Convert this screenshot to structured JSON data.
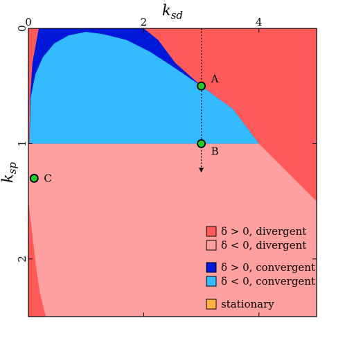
{
  "chart_data": {
    "type": "heatmap",
    "xlabel": {
      "main": "k",
      "sub": "sd"
    },
    "ylabel": {
      "main": "k",
      "sub": "sp"
    },
    "xlim": [
      0,
      5
    ],
    "ylim": [
      0,
      2.5
    ],
    "y_inverted": true,
    "x_axis_position": "top",
    "x_ticks": [
      {
        "value": 0,
        "label": "0"
      },
      {
        "value": 2,
        "label": "2"
      },
      {
        "value": 4,
        "label": "4"
      }
    ],
    "y_ticks": [
      {
        "value": 0,
        "label": "0"
      },
      {
        "value": 1,
        "label": "1"
      },
      {
        "value": 2,
        "label": "2"
      }
    ],
    "regions": [
      {
        "key": "div_pos",
        "color": "#ff5a5a",
        "legend": "δ > 0,  divergent"
      },
      {
        "key": "div_neg",
        "color": "#ffa0a0",
        "legend": "δ < 0,  divergent"
      },
      {
        "key": "conv_pos",
        "color": "#0019d9",
        "legend": "δ > 0,  convergent"
      },
      {
        "key": "conv_neg",
        "color": "#34baff",
        "legend": "δ < 0,  convergent"
      },
      {
        "key": "stationary",
        "color": "#ffb347",
        "legend": "stationary"
      }
    ],
    "region_shapes": {
      "div_pos_upper": [
        [
          2.0,
          0
        ],
        [
          5.0,
          0
        ],
        [
          5.0,
          1.5
        ],
        [
          4.5,
          1.25
        ],
        [
          4.0,
          1.0
        ],
        [
          3.55,
          0.7
        ],
        [
          3.0,
          0.5
        ],
        [
          2.55,
          0.3
        ],
        [
          2.25,
          0.1
        ]
      ],
      "div_pos_lower_left": [
        [
          0,
          1.5
        ],
        [
          0.07,
          1.8
        ],
        [
          0.14,
          2.1
        ],
        [
          0.2,
          2.3
        ],
        [
          0.3,
          2.5
        ],
        [
          0,
          2.5
        ]
      ],
      "div_neg_lower": [
        [
          0,
          1.0
        ],
        [
          4.0,
          1.0
        ],
        [
          4.5,
          1.25
        ],
        [
          5.0,
          1.5
        ],
        [
          5.0,
          2.5
        ],
        [
          0.3,
          2.5
        ],
        [
          0.2,
          2.3
        ],
        [
          0.14,
          2.1
        ],
        [
          0.07,
          1.8
        ],
        [
          0,
          1.5
        ]
      ],
      "conv_pos_upper": [
        [
          0.18,
          0
        ],
        [
          2.0,
          0
        ],
        [
          2.25,
          0.1
        ],
        [
          2.55,
          0.3
        ],
        [
          3.0,
          0.5
        ],
        [
          3.55,
          0.7
        ],
        [
          4.0,
          1.0
        ],
        [
          0.02,
          1.0
        ],
        [
          0.03,
          0.6
        ],
        [
          0.07,
          0.3
        ]
      ],
      "conv_neg_upper": [
        [
          0.02,
          1.0
        ],
        [
          0.04,
          0.6
        ],
        [
          0.12,
          0.4
        ],
        [
          0.25,
          0.25
        ],
        [
          0.45,
          0.13
        ],
        [
          0.7,
          0.06
        ],
        [
          1.0,
          0.03
        ],
        [
          1.3,
          0.05
        ],
        [
          1.7,
          0.1
        ],
        [
          2.1,
          0.2
        ],
        [
          2.5,
          0.33
        ],
        [
          3.0,
          0.5
        ],
        [
          3.55,
          0.7
        ],
        [
          4.0,
          1.0
        ]
      ]
    },
    "trajectory": {
      "x": 3.0,
      "y_start": 0,
      "y_end": 1.25,
      "style": "dotted-arrow"
    },
    "points": [
      {
        "label": "A",
        "x": 3.0,
        "y": 0.5
      },
      {
        "label": "B",
        "x": 3.0,
        "y": 1.0
      },
      {
        "label": "C",
        "x": 0.1,
        "y": 1.3
      }
    ],
    "point_color": "#22cc22",
    "legend_position": "bottom-right",
    "grid": false
  }
}
